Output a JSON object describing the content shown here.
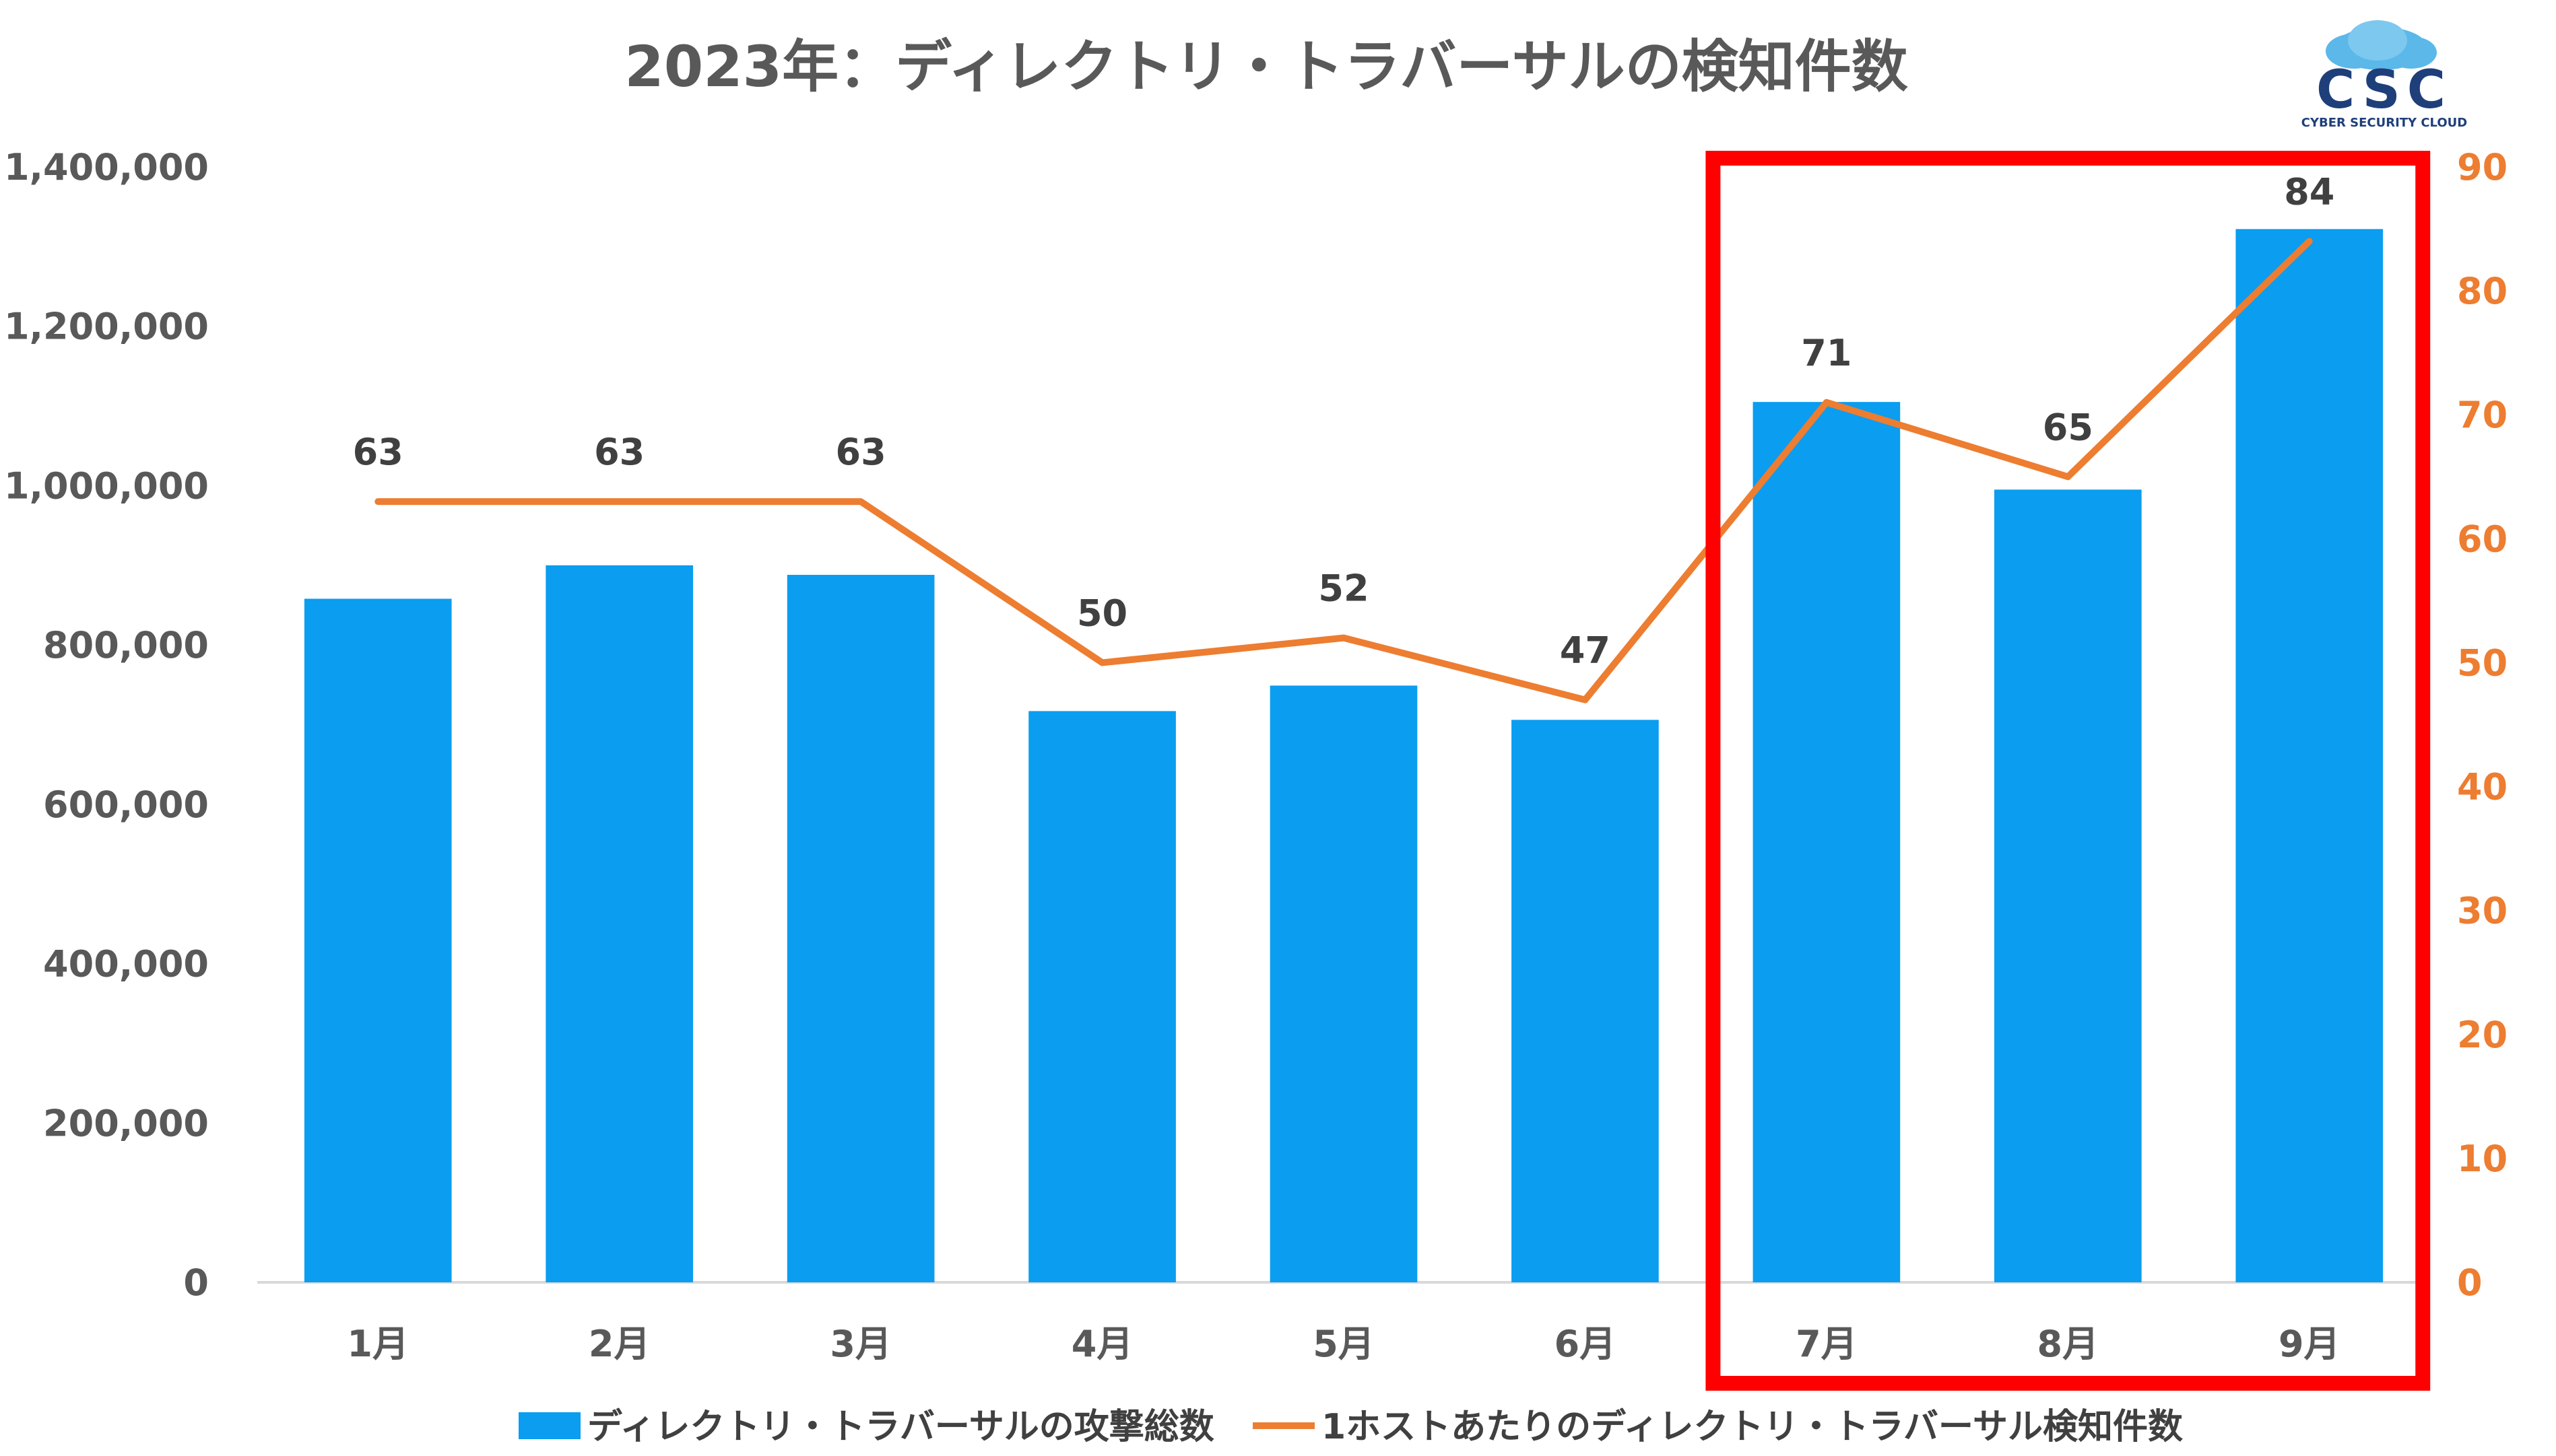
{
  "chart_data": {
    "type": "bar",
    "title": "2023年：ディレクトリ・トラバーサルの検知件数",
    "categories": [
      "1月",
      "2月",
      "3月",
      "4月",
      "5月",
      "6月",
      "7月",
      "8月",
      "9月"
    ],
    "series": [
      {
        "name": "ディレクトリ・トラバーサルの攻撃総数",
        "type": "bar",
        "axis": "left",
        "color": "#0A9DF0",
        "values": [
          858000,
          900000,
          888000,
          717000,
          749000,
          706000,
          1105000,
          995000,
          1322000
        ]
      },
      {
        "name": "1ホストあたりのディレクトリ・トラバーサル検知件数",
        "type": "line",
        "axis": "right",
        "color": "#ED7D31",
        "values": [
          63,
          63,
          63,
          50,
          52,
          47,
          71,
          65,
          84
        ],
        "data_labels": [
          "63",
          "63",
          "63",
          "50",
          "52",
          "47",
          "71",
          "65",
          "84"
        ]
      }
    ],
    "y_left": {
      "lim": [
        0,
        1400000
      ],
      "ticks": [
        "0",
        "200,000",
        "400,000",
        "600,000",
        "800,000",
        "1,000,000",
        "1,200,000",
        "1,400,000"
      ]
    },
    "y_right": {
      "lim": [
        0,
        90
      ],
      "ticks": [
        "0",
        "10",
        "20",
        "30",
        "40",
        "50",
        "60",
        "70",
        "80",
        "90"
      ],
      "color": "#ED7D31"
    },
    "grid": false,
    "legend": "bottom",
    "highlight": {
      "categories": [
        "7月",
        "8月",
        "9月"
      ],
      "color": "#FF0000"
    }
  },
  "logo": {
    "text": "CSC",
    "subtext": "CYBER SECURITY CLOUD",
    "color": "#1f3f7a",
    "cloud_color": "#5bb8e8"
  }
}
